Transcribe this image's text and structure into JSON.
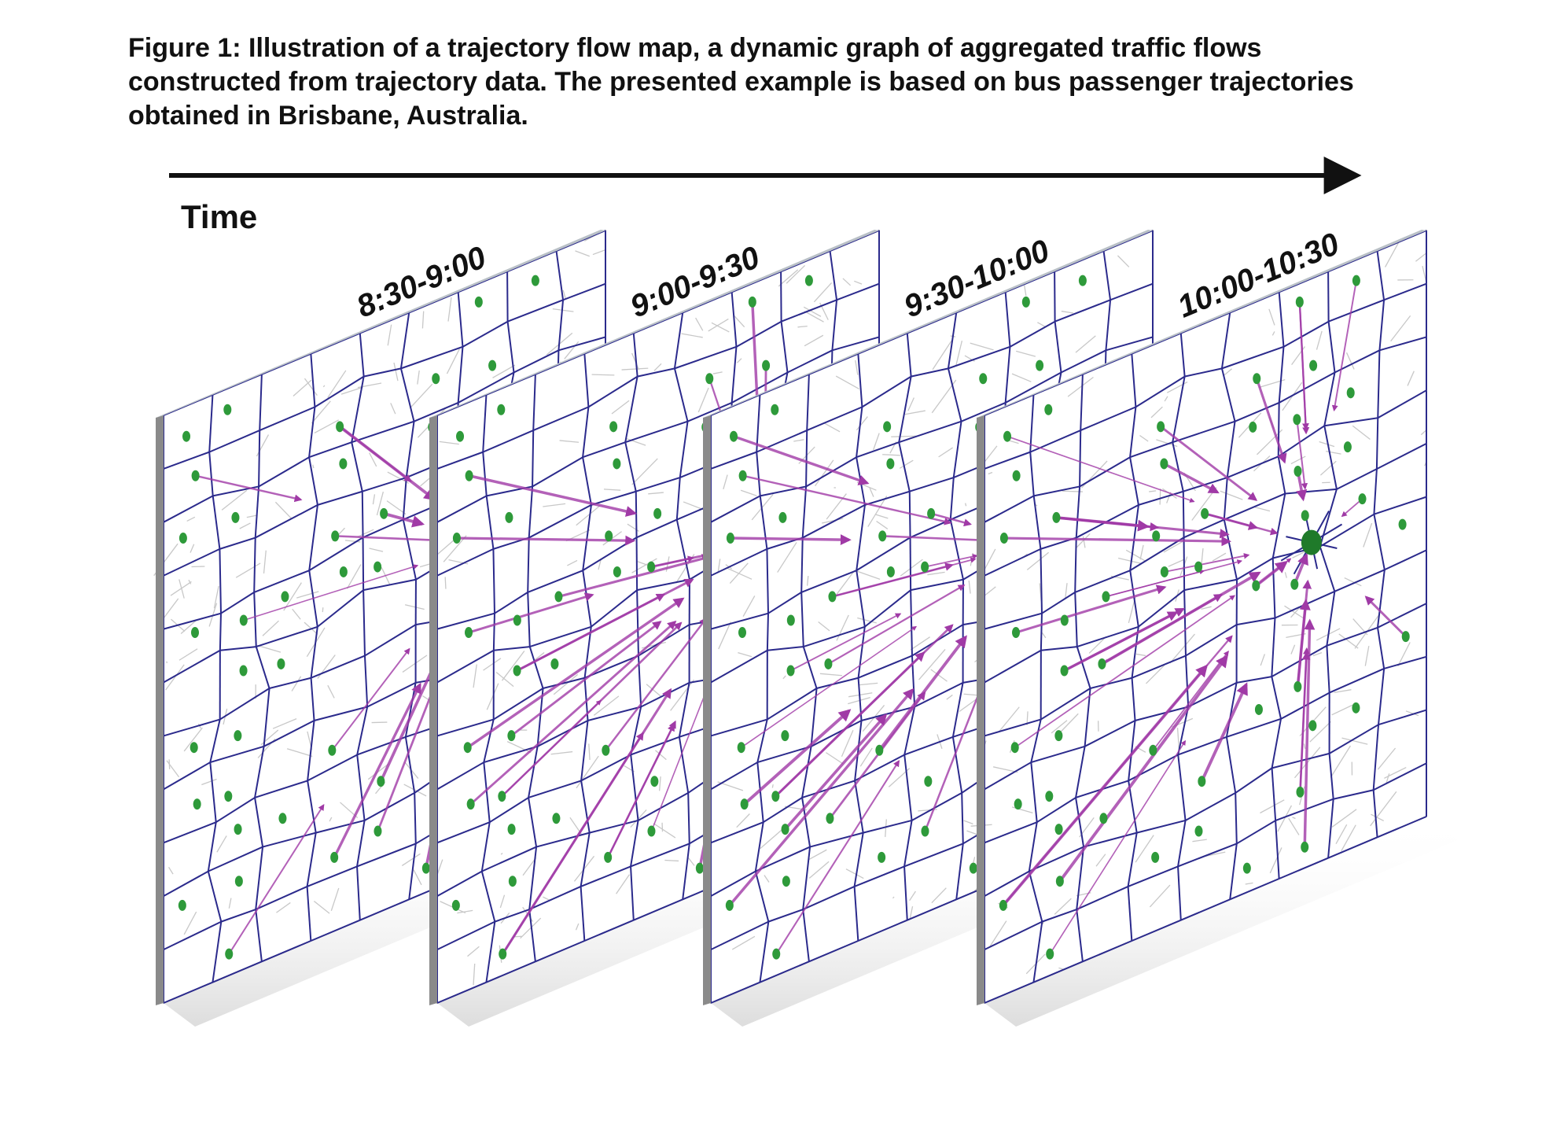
{
  "caption": "Figure 1: Illustration of a trajectory flow map, a dynamic graph of aggregated traffic flows constructed from trajectory data. The presented example is based on bus passenger trajectories obtained in Brisbane, Australia.",
  "figure": {
    "axis_label": "Time",
    "panels": [
      {
        "label": "8:30-9:00"
      },
      {
        "label": "9:00-9:30"
      },
      {
        "label": "9:30-10:00"
      },
      {
        "label": "10:00-10:30"
      }
    ],
    "colors": {
      "cell_edges": "#2b2a8c",
      "nodes": "#2e9a3a",
      "flows": "#a03aa6",
      "roads": "#c8c8c8",
      "panel_edge": "#8a8a8a"
    }
  }
}
